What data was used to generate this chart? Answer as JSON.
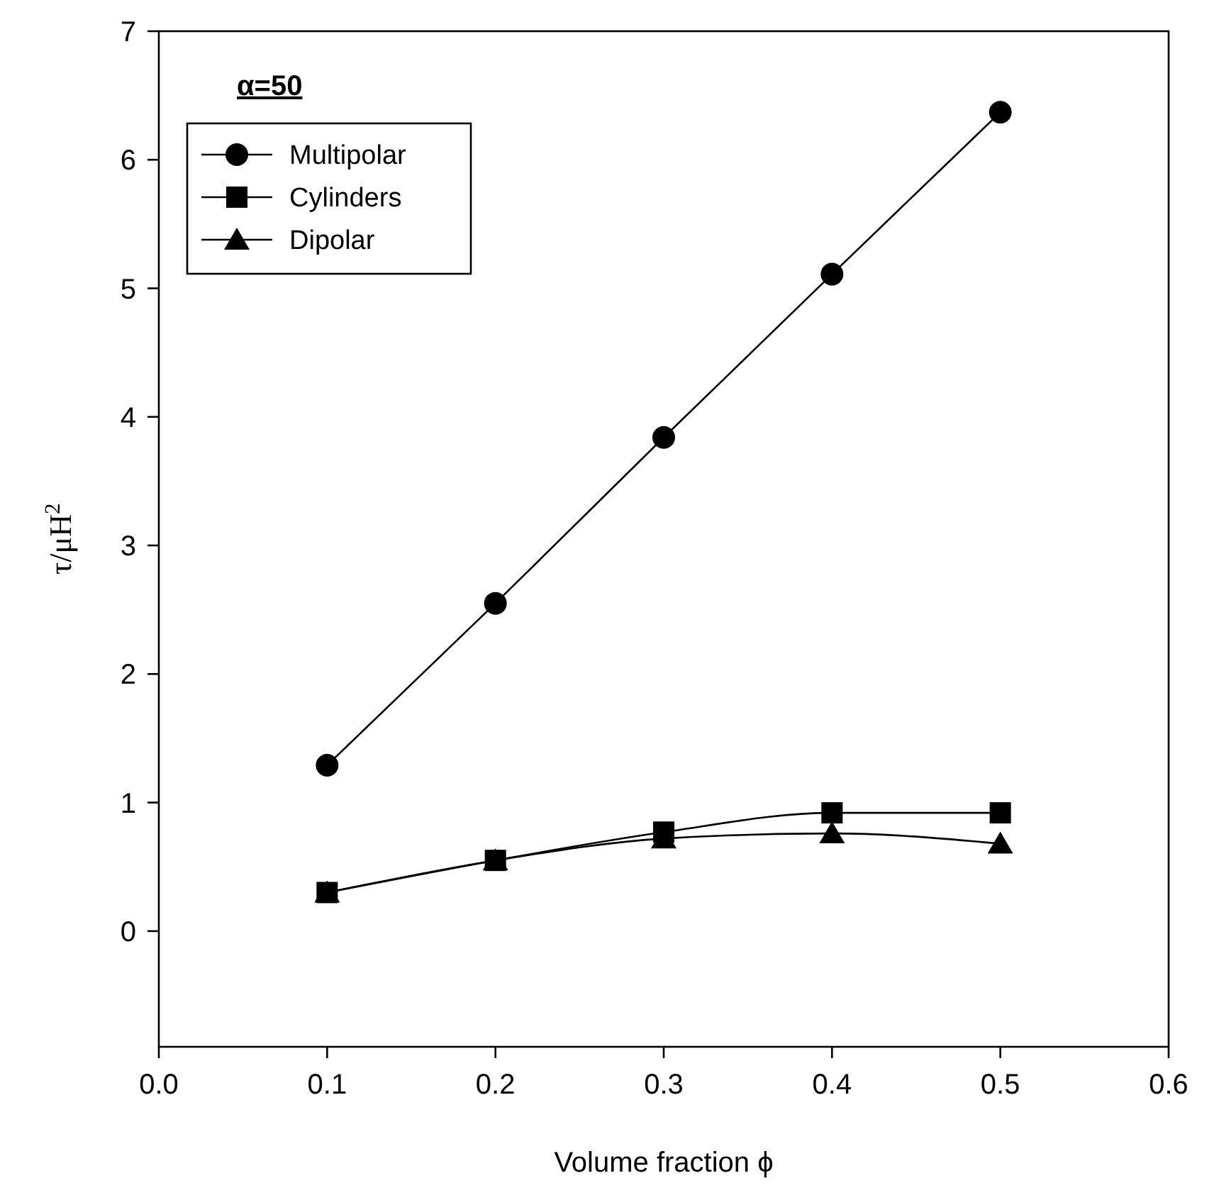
{
  "chart_data": {
    "type": "line",
    "xlabel": "Volume fraction ϕ",
    "ylabel": "τ/μH$^{2}$",
    "annotations": [
      "α=50"
    ],
    "x": [
      0.1,
      0.2,
      0.3,
      0.4,
      0.5
    ],
    "series": [
      {
        "name": "Multipolar",
        "color": "#000000",
        "marker": "circle",
        "values": [
          1.29,
          2.55,
          3.84,
          5.11,
          6.37
        ]
      },
      {
        "name": "Cylinders",
        "color": "#000000",
        "marker": "square",
        "values": [
          0.3,
          0.55,
          0.77,
          0.92,
          0.92
        ]
      },
      {
        "name": "Dipolar",
        "color": "#000000",
        "marker": "triangle",
        "values": [
          0.3,
          0.55,
          0.72,
          0.76,
          0.68
        ]
      }
    ],
    "xlim": [
      0,
      0.6
    ],
    "xticks": [
      {
        "value": 0,
        "label": "0.0"
      },
      0.1,
      0.2,
      0.3,
      0.4,
      0.5,
      0.6
    ],
    "ylim": [
      -0.9,
      7
    ],
    "yticks": [
      0,
      1,
      2,
      3,
      4,
      5,
      6,
      7
    ],
    "legend": "top left",
    "grid": false,
    "line_style": "solid"
  }
}
